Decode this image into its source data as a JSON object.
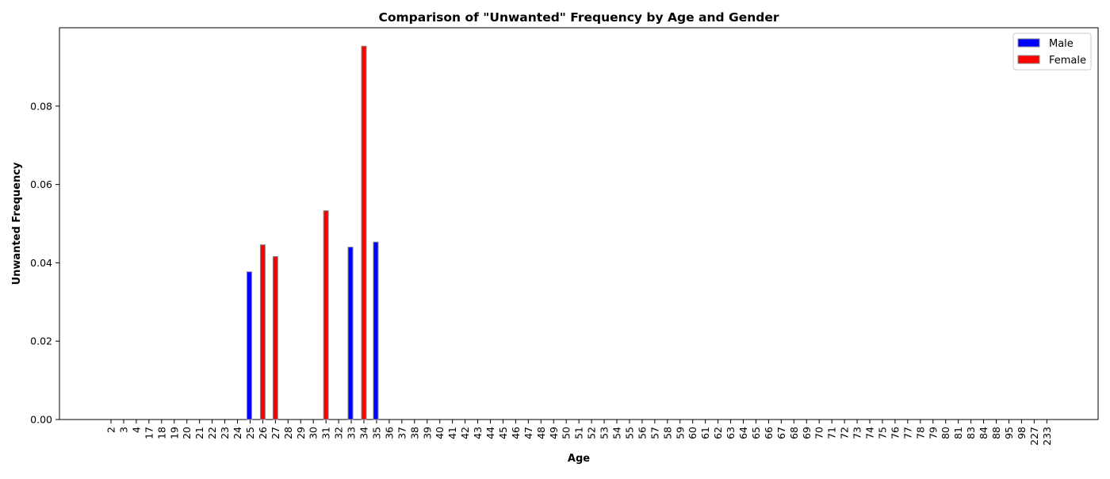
{
  "chart_data": {
    "type": "bar",
    "title": "Comparison of \"Unwanted\" Frequency by Age and Gender",
    "xlabel": "Age",
    "ylabel": "Unwanted Frequency",
    "ylim": [
      0,
      0.1
    ],
    "yticks": [
      "0.00",
      "0.02",
      "0.04",
      "0.06",
      "0.08"
    ],
    "ytick_values": [
      0,
      0.02,
      0.04,
      0.06,
      0.08
    ],
    "grid": false,
    "legend_position": "top-right",
    "categories": [
      "2",
      "3",
      "4",
      "17",
      "18",
      "19",
      "20",
      "21",
      "22",
      "23",
      "24",
      "25",
      "26",
      "27",
      "28",
      "29",
      "30",
      "31",
      "32",
      "33",
      "34",
      "35",
      "36",
      "37",
      "38",
      "39",
      "40",
      "41",
      "42",
      "43",
      "44",
      "45",
      "46",
      "47",
      "48",
      "49",
      "50",
      "51",
      "52",
      "53",
      "54",
      "55",
      "56",
      "57",
      "58",
      "59",
      "60",
      "61",
      "62",
      "63",
      "64",
      "65",
      "66",
      "67",
      "68",
      "69",
      "70",
      "71",
      "72",
      "73",
      "74",
      "75",
      "76",
      "77",
      "78",
      "79",
      "80",
      "81",
      "83",
      "84",
      "88",
      "95",
      "98",
      "227",
      "233"
    ],
    "series": [
      {
        "name": "Male",
        "color": "#0000ff",
        "values": [
          0,
          0,
          0,
          0,
          0,
          0,
          0,
          0,
          0,
          0,
          0,
          0.0377,
          0,
          0,
          0,
          0,
          0,
          0,
          0,
          0.044,
          0,
          0.0453,
          0,
          0,
          0,
          0,
          0,
          0,
          0,
          0,
          0,
          0,
          0,
          0,
          0,
          0,
          0,
          0,
          0,
          0,
          0,
          0,
          0,
          0,
          0,
          0,
          0,
          0,
          0,
          0,
          0,
          0,
          0,
          0,
          0,
          0,
          0,
          0,
          0,
          0,
          0,
          0,
          0,
          0,
          0,
          0,
          0,
          0,
          0,
          0,
          0,
          0,
          0,
          0,
          0
        ]
      },
      {
        "name": "Female",
        "color": "#ff0000",
        "values": [
          0,
          0,
          0,
          0,
          0,
          0,
          0,
          0,
          0,
          0,
          0,
          0,
          0.0446,
          0.0416,
          0,
          0,
          0,
          0.0533,
          0,
          0,
          0.0953,
          0,
          0,
          0,
          0,
          0,
          0,
          0,
          0,
          0,
          0,
          0,
          0,
          0,
          0,
          0,
          0,
          0,
          0,
          0,
          0,
          0,
          0,
          0,
          0,
          0,
          0,
          0,
          0,
          0,
          0,
          0,
          0,
          0,
          0,
          0,
          0,
          0,
          0,
          0,
          0,
          0,
          0,
          0,
          0,
          0,
          0,
          0,
          0,
          0,
          0,
          0,
          0,
          0,
          0
        ]
      }
    ]
  }
}
